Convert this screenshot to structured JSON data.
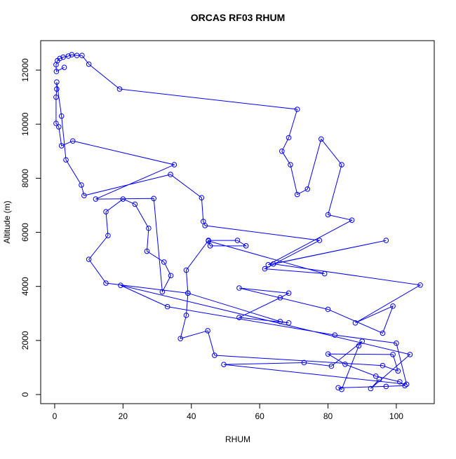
{
  "chart_data": {
    "type": "line",
    "title": "ORCAS RF03 RHUM",
    "x_label": "RHUM",
    "y_label": "Altitude (m)",
    "xlim": [
      -4.1,
      111.1
    ],
    "ylim": [
      -337,
      13090
    ],
    "xticks": [
      0,
      20,
      40,
      60,
      80,
      100
    ],
    "yticks": [
      0,
      2000,
      4000,
      6000,
      8000,
      10000,
      12000
    ],
    "markers": true,
    "series": [
      {
        "name": "RHUM",
        "color": "#0000ff",
        "x": [
          2.8,
          0.5,
          0.4,
          0.8,
          1.5,
          2.5,
          4,
          5,
          6.5,
          8,
          10,
          19,
          71,
          68.5,
          66.5,
          69,
          71,
          74,
          78,
          84,
          80,
          87,
          62.5,
          97,
          64,
          107,
          88,
          99,
          96,
          80,
          54,
          68.5,
          66,
          54,
          68.5,
          66,
          39,
          15,
          10,
          15.6,
          15,
          20,
          23.5,
          27.5,
          27,
          32,
          34,
          31.5,
          29,
          12,
          35,
          5.3,
          2,
          1.2,
          0.4,
          0.4,
          0.6,
          0.6,
          2,
          3.3,
          7.8,
          8.6,
          33.9,
          43,
          43.5,
          44,
          77.5,
          61.5,
          79,
          45,
          45.5,
          56,
          53.5,
          45,
          38.5,
          39,
          38.5,
          36.8,
          44.8,
          46.8,
          96,
          100.5,
          99,
          80,
          85,
          94,
          101,
          102.5,
          97,
          83,
          84,
          89,
          90,
          81,
          73,
          49.5,
          103,
          100,
          82,
          33,
          19.3,
          104,
          92.5,
          95
        ],
        "values": [
          12100,
          11950,
          12200,
          12350,
          12430,
          12480,
          12520,
          12570,
          12540,
          12540,
          12220,
          11300,
          10550,
          9500,
          9000,
          8500,
          7400,
          7600,
          9450,
          8500,
          6650,
          6450,
          4800,
          5700,
          4830,
          4050,
          2650,
          3270,
          2270,
          3150,
          3940,
          3750,
          3580,
          2850,
          2650,
          2700,
          3750,
          4120,
          5000,
          5880,
          6760,
          7230,
          7040,
          6150,
          5300,
          4900,
          4400,
          3800,
          7250,
          7230,
          8500,
          9380,
          9200,
          9900,
          10030,
          11000,
          11300,
          11560,
          10300,
          8680,
          7750,
          7360,
          8140,
          7280,
          6400,
          6250,
          5700,
          4650,
          4470,
          5680,
          5500,
          5500,
          5700,
          5700,
          4600,
          3750,
          2930,
          2070,
          2360,
          1450,
          1070,
          870,
          1480,
          1500,
          1120,
          680,
          470,
          330,
          300,
          250,
          190,
          1800,
          1970,
          1050,
          1180,
          1110,
          380,
          1900,
          2200,
          3250,
          4040,
          1480,
          220,
          560
        ]
      }
    ]
  }
}
